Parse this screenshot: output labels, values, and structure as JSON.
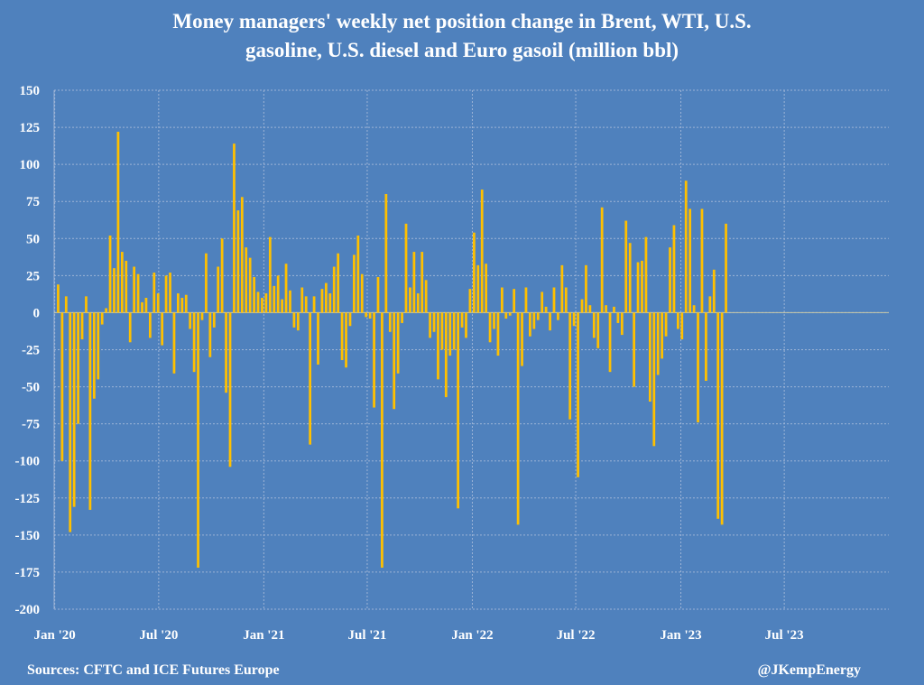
{
  "title_lines": [
    "Money managers' weekly net position change in Brent, WTI, U.S.",
    "gasoline, U.S. diesel and Euro gasoil (million bbl)"
  ],
  "source": "Sources: CFTC and ICE Futures Europe",
  "credit": "@JKempEnergy",
  "colors": {
    "background": "#4f81bd",
    "bar": "#ffc000",
    "grid": "#9db4d6",
    "text": "#ffffff"
  },
  "chart_data": {
    "type": "bar",
    "title": "Money managers' weekly net position change in Brent, WTI, U.S. gasoline, U.S. diesel and Euro gasoil (million bbl)",
    "xlabel": "",
    "ylabel": "",
    "ylim": [
      -200,
      150
    ],
    "yticks": [
      150,
      125,
      100,
      75,
      50,
      25,
      0,
      -25,
      -50,
      -75,
      -100,
      -125,
      -150,
      -175,
      -200
    ],
    "xlim": [
      "2019-12-31",
      "2023-12-31"
    ],
    "xticks": [
      {
        "date": "2020-01-01",
        "label": "Jan '20"
      },
      {
        "date": "2020-07-01",
        "label": "Jul '20"
      },
      {
        "date": "2021-01-01",
        "label": "Jan '21"
      },
      {
        "date": "2021-07-01",
        "label": "Jul '21"
      },
      {
        "date": "2022-01-01",
        "label": "Jan '22"
      },
      {
        "date": "2022-07-01",
        "label": "Jul '22"
      },
      {
        "date": "2023-01-01",
        "label": "Jan '23"
      },
      {
        "date": "2023-07-01",
        "label": "Jul '23"
      }
    ],
    "grid": true,
    "legend": "none",
    "x_start": "2020-01-07",
    "x_step_days": 7,
    "values": [
      19,
      -100,
      11,
      -148,
      -131,
      -75,
      -18,
      11,
      -133,
      -58,
      -45,
      -8,
      3,
      52,
      30,
      122,
      41,
      35,
      -20,
      31,
      26,
      7,
      10,
      -17,
      27,
      13,
      -22,
      25,
      27,
      -41,
      13,
      10,
      12,
      -11,
      -40,
      -172,
      -5,
      40,
      -30,
      -10,
      31,
      50,
      -54,
      -104,
      114,
      69,
      78,
      44,
      37,
      24,
      14,
      10,
      13,
      51,
      18,
      25,
      9,
      33,
      15,
      -10,
      -12,
      17,
      11,
      -89,
      11,
      -35,
      16,
      20,
      13,
      31,
      40,
      -32,
      -37,
      -9,
      39,
      52,
      26,
      -3,
      -4,
      -64,
      24,
      -172,
      80,
      -13,
      -65,
      -41,
      -7,
      60,
      17,
      41,
      13,
      41,
      22,
      -17,
      -13,
      -45,
      -25,
      -57,
      -29,
      -25,
      -132,
      -10,
      -17,
      16,
      54,
      32,
      83,
      33,
      -20,
      -11,
      -29,
      17,
      -4,
      -2,
      16,
      -143,
      -36,
      17,
      -16,
      -11,
      -5,
      14,
      4,
      -12,
      17,
      -5,
      32,
      17,
      -72,
      -9,
      -111,
      9,
      32,
      5,
      -17,
      -24,
      71,
      5,
      -40,
      4,
      -7,
      -15,
      62,
      47,
      -50,
      34,
      35,
      51,
      -60,
      -90,
      -42,
      -31,
      -16,
      44,
      59,
      -11,
      -18,
      89,
      70,
      5,
      -74,
      70,
      -46,
      11,
      29,
      -139,
      -143,
      60
    ]
  }
}
